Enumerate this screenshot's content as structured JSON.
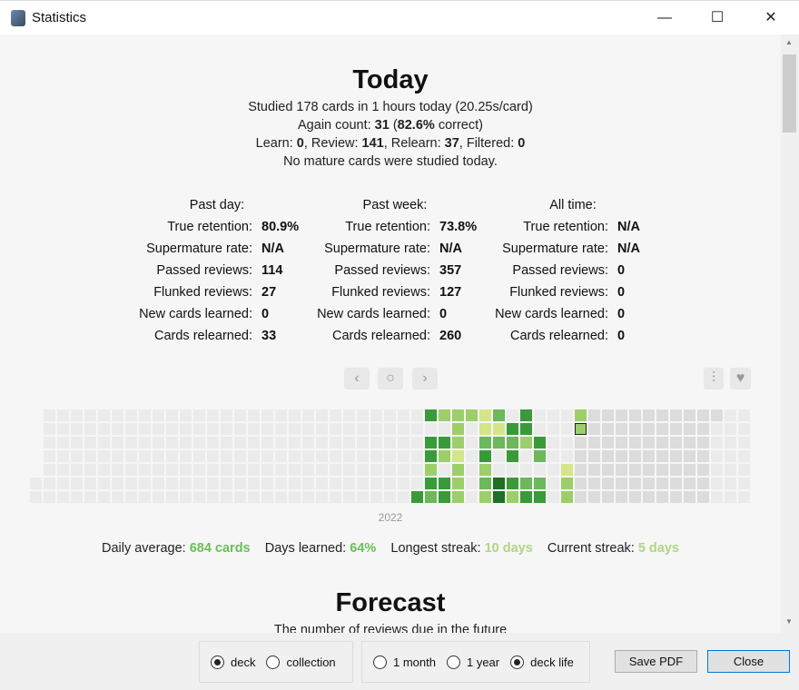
{
  "window": {
    "title": "Statistics",
    "minimize": "—",
    "maximize": "☐",
    "close": "✕"
  },
  "today": {
    "title": "Today",
    "lines": [
      "Studied 178 cards in 1 hours today (20.25s/card)"
    ],
    "again": {
      "pre": "Again count: ",
      "count": "31",
      "mid": " (",
      "pct": "82.6%",
      "post": " correct)"
    },
    "breakdown": {
      "learn_l": "Learn: ",
      "learn": "0",
      "review_l": ", Review: ",
      "review": "141",
      "relearn_l": ", Relearn: ",
      "relearn": "37",
      "filtered_l": ", Filtered: ",
      "filtered": "0"
    },
    "mature": "No mature cards were studied today."
  },
  "stats": [
    {
      "head": "Past day:",
      "rows": [
        [
          "True retention:",
          "80.9%"
        ],
        [
          "Supermature rate:",
          "N/A"
        ],
        [
          "Passed reviews:",
          "114"
        ],
        [
          "Flunked reviews:",
          "27"
        ],
        [
          "New cards learned:",
          "0"
        ],
        [
          "Cards relearned:",
          "33"
        ]
      ]
    },
    {
      "head": "Past week:",
      "rows": [
        [
          "True retention:",
          "73.8%"
        ],
        [
          "Supermature rate:",
          "N/A"
        ],
        [
          "Passed reviews:",
          "357"
        ],
        [
          "Flunked reviews:",
          "127"
        ],
        [
          "New cards learned:",
          "0"
        ],
        [
          "Cards relearned:",
          "260"
        ]
      ]
    },
    {
      "head": "All time:",
      "rows": [
        [
          "True retention:",
          "N/A"
        ],
        [
          "Supermature rate:",
          "N/A"
        ],
        [
          "Passed reviews:",
          "0"
        ],
        [
          "Flunked reviews:",
          "0"
        ],
        [
          "New cards learned:",
          "0"
        ],
        [
          "Cards relearned:",
          "0"
        ]
      ]
    }
  ],
  "heatmap_nav": {
    "prev": "‹",
    "today": "○",
    "next": "›",
    "filter_icon": "sliders-icon",
    "heart_icon": "heart-icon"
  },
  "chart_data": {
    "type": "heatmap",
    "year_label": "2022",
    "colors": {
      "1": "#d5e58a",
      "2": "#9ccf6a",
      "3": "#6cb85a",
      "4": "#3a9a3a",
      "5": "#1f6f26",
      "empty": "#ebebeb",
      "future": "#dcdcdc"
    },
    "today": {
      "week": 40,
      "weekday": 1
    },
    "cells": [
      [
        28,
        6,
        4
      ],
      [
        29,
        0,
        4
      ],
      [
        29,
        2,
        4
      ],
      [
        29,
        3,
        4
      ],
      [
        29,
        4,
        2
      ],
      [
        29,
        5,
        4
      ],
      [
        29,
        6,
        3
      ],
      [
        30,
        0,
        2
      ],
      [
        30,
        2,
        4
      ],
      [
        30,
        3,
        2
      ],
      [
        30,
        5,
        4
      ],
      [
        30,
        6,
        4
      ],
      [
        31,
        0,
        2
      ],
      [
        31,
        1,
        2
      ],
      [
        31,
        2,
        2
      ],
      [
        31,
        3,
        1
      ],
      [
        31,
        4,
        2
      ],
      [
        31,
        5,
        2
      ],
      [
        31,
        6,
        2
      ],
      [
        32,
        0,
        2
      ],
      [
        33,
        0,
        1
      ],
      [
        33,
        1,
        1
      ],
      [
        33,
        2,
        3
      ],
      [
        33,
        3,
        4
      ],
      [
        33,
        4,
        2
      ],
      [
        33,
        5,
        3
      ],
      [
        33,
        6,
        2
      ],
      [
        34,
        0,
        3
      ],
      [
        34,
        1,
        1
      ],
      [
        34,
        2,
        3
      ],
      [
        34,
        5,
        5
      ],
      [
        34,
        6,
        5
      ],
      [
        35,
        1,
        4
      ],
      [
        35,
        2,
        3
      ],
      [
        35,
        3,
        4
      ],
      [
        35,
        5,
        4
      ],
      [
        35,
        6,
        2
      ],
      [
        36,
        0,
        4
      ],
      [
        36,
        1,
        4
      ],
      [
        36,
        2,
        2
      ],
      [
        36,
        5,
        3
      ],
      [
        36,
        6,
        4
      ],
      [
        37,
        2,
        4
      ],
      [
        37,
        3,
        3
      ],
      [
        37,
        5,
        3
      ],
      [
        37,
        6,
        4
      ],
      [
        39,
        4,
        1
      ],
      [
        39,
        5,
        2
      ],
      [
        39,
        6,
        2
      ],
      [
        40,
        0,
        2
      ],
      [
        40,
        1,
        2
      ]
    ]
  },
  "summary": {
    "avg_l": "Daily average: ",
    "avg": "684 cards",
    "days_l": "Days learned: ",
    "days": "64%",
    "longest_l": "Longest streak: ",
    "longest": "10 days",
    "current_l": "Current streak: ",
    "current": "5 days"
  },
  "forecast": {
    "title": "Forecast",
    "subtitle": "The number of reviews due in the future"
  },
  "bottom": {
    "scope": [
      "deck",
      "collection"
    ],
    "scope_selected": 0,
    "range": [
      "1 month",
      "1 year",
      "deck life"
    ],
    "range_selected": 2,
    "save": "Save PDF",
    "close": "Close"
  }
}
